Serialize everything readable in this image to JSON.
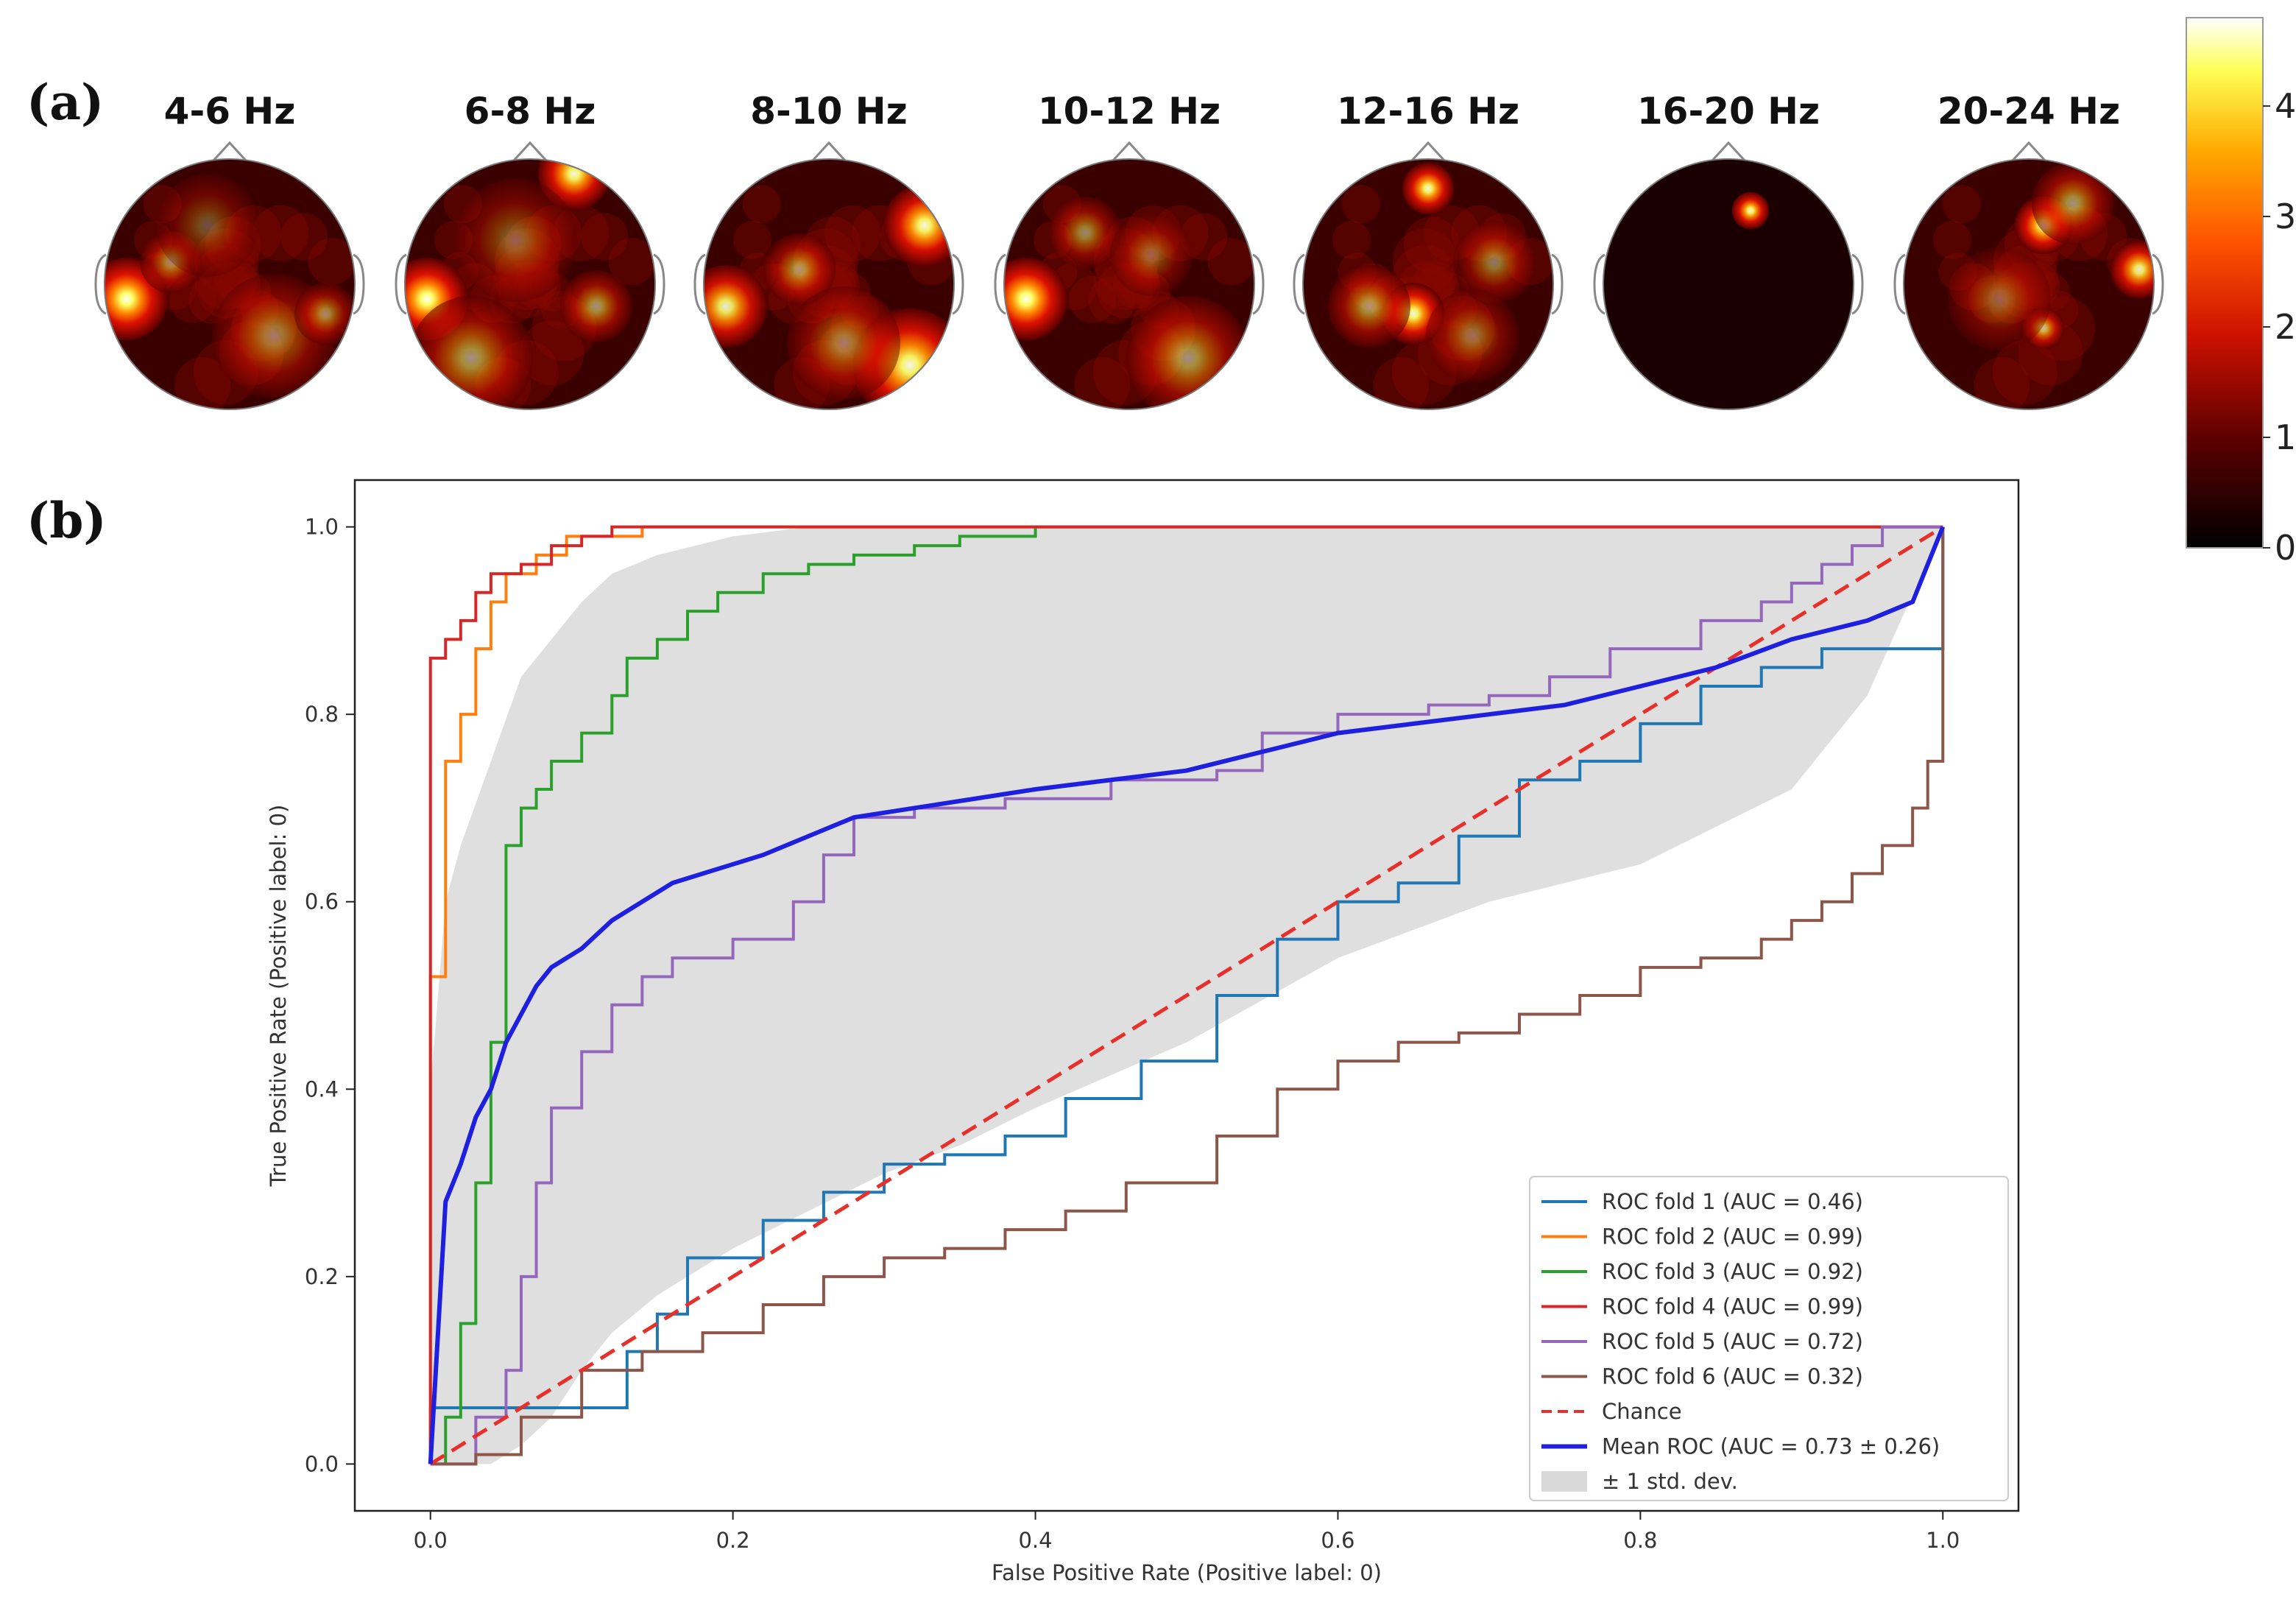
{
  "panel_a_label": "(a)",
  "panel_b_label": "(b)",
  "colors": {
    "fold1": "#1f77b4",
    "fold2": "#ff7f0e",
    "fold3": "#2ca02c",
    "fold4": "#d62728",
    "fold5": "#9467bd",
    "fold6": "#8c564b",
    "chance": "#e8302a",
    "mean": "#1f1fe0",
    "std_band": "#d9d9d9"
  },
  "chart_data": [
    {
      "type": "heatmap",
      "subtype": "topomap",
      "title": "",
      "bands": [
        "4-6 Hz",
        "6-8 Hz",
        "8-10 Hz",
        "10-12 Hz",
        "12-16 Hz",
        "16-20 Hz",
        "20-24 Hz"
      ],
      "colorbar": {
        "cmap": "hot",
        "range": [
          0,
          4.8
        ],
        "ticks": [
          "0",
          "1",
          "2",
          "3",
          "4"
        ]
      }
    },
    {
      "type": "line",
      "xlabel": "False Positive Rate (Positive label: 0)",
      "ylabel": "True Positive Rate (Positive label: 0)",
      "xlim": [
        -0.05,
        1.05
      ],
      "ylim": [
        -0.05,
        1.05
      ],
      "xticks": [
        "0.0",
        "0.2",
        "0.4",
        "0.6",
        "0.8",
        "1.0"
      ],
      "yticks": [
        "0.0",
        "0.2",
        "0.4",
        "0.6",
        "0.8",
        "1.0"
      ],
      "legend_position": "lower-right",
      "legend": [
        "ROC fold 1 (AUC = 0.46)",
        "ROC fold 2 (AUC = 0.99)",
        "ROC fold 3 (AUC = 0.92)",
        "ROC fold 4 (AUC = 0.99)",
        "ROC fold 5 (AUC = 0.72)",
        "ROC fold 6 (AUC = 0.32)",
        "Chance",
        "Mean ROC (AUC = 0.73 ± 0.26)",
        "± 1 std. dev."
      ],
      "series": [
        {
          "name": "ROC fold 1 (AUC = 0.46)",
          "color": "#1f77b4",
          "style": "step",
          "x": [
            0,
            0.0,
            0.06,
            0.12,
            0.13,
            0.15,
            0.17,
            0.22,
            0.26,
            0.3,
            0.34,
            0.38,
            0.42,
            0.47,
            0.52,
            0.56,
            0.6,
            0.64,
            0.68,
            0.72,
            0.76,
            0.8,
            0.84,
            0.88,
            0.92,
            0.96,
            0.99,
            1.0,
            1.0
          ],
          "y": [
            0,
            0.06,
            0.06,
            0.06,
            0.12,
            0.16,
            0.22,
            0.26,
            0.29,
            0.32,
            0.33,
            0.35,
            0.39,
            0.43,
            0.5,
            0.56,
            0.6,
            0.62,
            0.67,
            0.73,
            0.75,
            0.79,
            0.83,
            0.85,
            0.87,
            0.87,
            0.87,
            0.9,
            1.0
          ]
        },
        {
          "name": "ROC fold 2 (AUC = 0.99)",
          "color": "#ff7f0e",
          "style": "step",
          "x": [
            0,
            0.0,
            0.01,
            0.01,
            0.02,
            0.03,
            0.04,
            0.05,
            0.07,
            0.09,
            0.11,
            0.14,
            1.0
          ],
          "y": [
            0,
            0.52,
            0.62,
            0.75,
            0.8,
            0.87,
            0.92,
            0.95,
            0.97,
            0.99,
            0.99,
            1.0,
            1.0
          ]
        },
        {
          "name": "ROC fold 3 (AUC = 0.92)",
          "color": "#2ca02c",
          "style": "step",
          "x": [
            0,
            0.01,
            0.02,
            0.03,
            0.04,
            0.05,
            0.05,
            0.06,
            0.07,
            0.08,
            0.1,
            0.12,
            0.13,
            0.15,
            0.17,
            0.19,
            0.22,
            0.25,
            0.28,
            0.32,
            0.35,
            0.4,
            1.0
          ],
          "y": [
            0,
            0.05,
            0.15,
            0.3,
            0.45,
            0.6,
            0.66,
            0.7,
            0.72,
            0.75,
            0.78,
            0.82,
            0.86,
            0.88,
            0.91,
            0.93,
            0.95,
            0.96,
            0.97,
            0.98,
            0.99,
            1.0,
            1.0
          ]
        },
        {
          "name": "ROC fold 4 (AUC = 0.99)",
          "color": "#d62728",
          "style": "step",
          "x": [
            0,
            0.0,
            0.0,
            0.01,
            0.02,
            0.03,
            0.04,
            0.06,
            0.08,
            0.1,
            0.12,
            1.0
          ],
          "y": [
            0,
            0.62,
            0.86,
            0.88,
            0.9,
            0.93,
            0.95,
            0.96,
            0.98,
            0.99,
            1.0,
            1.0
          ]
        },
        {
          "name": "ROC fold 5 (AUC = 0.72)",
          "color": "#9467bd",
          "style": "step",
          "x": [
            0,
            0.03,
            0.05,
            0.06,
            0.07,
            0.08,
            0.1,
            0.12,
            0.14,
            0.16,
            0.2,
            0.24,
            0.26,
            0.28,
            0.32,
            0.38,
            0.45,
            0.52,
            0.55,
            0.6,
            0.66,
            0.7,
            0.74,
            0.78,
            0.84,
            0.88,
            0.9,
            0.92,
            0.94,
            0.96,
            0.98,
            1.0
          ],
          "y": [
            0,
            0.05,
            0.1,
            0.2,
            0.3,
            0.38,
            0.44,
            0.49,
            0.52,
            0.54,
            0.56,
            0.6,
            0.65,
            0.69,
            0.7,
            0.71,
            0.73,
            0.74,
            0.78,
            0.8,
            0.81,
            0.82,
            0.84,
            0.87,
            0.9,
            0.92,
            0.94,
            0.96,
            0.98,
            1.0,
            1.0,
            1.0
          ]
        },
        {
          "name": "ROC fold 6 (AUC = 0.32)",
          "color": "#8c564b",
          "style": "step",
          "x": [
            0,
            0.03,
            0.06,
            0.1,
            0.14,
            0.18,
            0.22,
            0.26,
            0.3,
            0.34,
            0.38,
            0.42,
            0.46,
            0.52,
            0.56,
            0.6,
            0.64,
            0.68,
            0.72,
            0.76,
            0.8,
            0.84,
            0.88,
            0.9,
            0.92,
            0.94,
            0.96,
            0.98,
            0.99,
            1.0
          ],
          "y": [
            0,
            0.01,
            0.05,
            0.1,
            0.12,
            0.14,
            0.17,
            0.2,
            0.22,
            0.23,
            0.25,
            0.27,
            0.3,
            0.35,
            0.4,
            0.43,
            0.45,
            0.46,
            0.48,
            0.5,
            0.53,
            0.54,
            0.56,
            0.58,
            0.6,
            0.63,
            0.66,
            0.7,
            0.75,
            1.0
          ]
        },
        {
          "name": "Chance",
          "color": "#e8302a",
          "style": "dashed",
          "x": [
            0,
            1
          ],
          "y": [
            0,
            1
          ]
        },
        {
          "name": "Mean ROC (AUC = 0.73 ± 0.26)",
          "color": "#1f1fe0",
          "style": "line",
          "x": [
            0,
            0.01,
            0.02,
            0.03,
            0.04,
            0.05,
            0.06,
            0.07,
            0.08,
            0.1,
            0.12,
            0.14,
            0.16,
            0.18,
            0.2,
            0.22,
            0.25,
            0.28,
            0.32,
            0.36,
            0.4,
            0.45,
            0.5,
            0.55,
            0.6,
            0.65,
            0.7,
            0.75,
            0.8,
            0.85,
            0.9,
            0.95,
            0.98,
            1.0
          ],
          "y": [
            0,
            0.28,
            0.32,
            0.37,
            0.4,
            0.45,
            0.48,
            0.51,
            0.53,
            0.55,
            0.58,
            0.6,
            0.62,
            0.63,
            0.64,
            0.65,
            0.67,
            0.69,
            0.7,
            0.71,
            0.72,
            0.73,
            0.74,
            0.76,
            0.78,
            0.79,
            0.8,
            0.81,
            0.83,
            0.85,
            0.88,
            0.9,
            0.92,
            1.0
          ]
        }
      ],
      "std_band": {
        "name": "± 1 std. dev.",
        "x": [
          0,
          0.01,
          0.02,
          0.04,
          0.06,
          0.08,
          0.1,
          0.12,
          0.15,
          0.2,
          0.25,
          0.3,
          0.35,
          0.4,
          0.5,
          0.6,
          0.7,
          0.8,
          0.9,
          0.95,
          1.0
        ],
        "upper": [
          0.4,
          0.6,
          0.66,
          0.75,
          0.84,
          0.88,
          0.92,
          0.95,
          0.97,
          0.99,
          1.0,
          1.0,
          1.0,
          1.0,
          1.0,
          1.0,
          1.0,
          1.0,
          1.0,
          1.0,
          1.0
        ],
        "lower": [
          0,
          0.0,
          0.0,
          0.0,
          0.02,
          0.05,
          0.1,
          0.14,
          0.18,
          0.23,
          0.27,
          0.31,
          0.34,
          0.38,
          0.45,
          0.54,
          0.6,
          0.64,
          0.72,
          0.82,
          1.0
        ]
      }
    }
  ]
}
